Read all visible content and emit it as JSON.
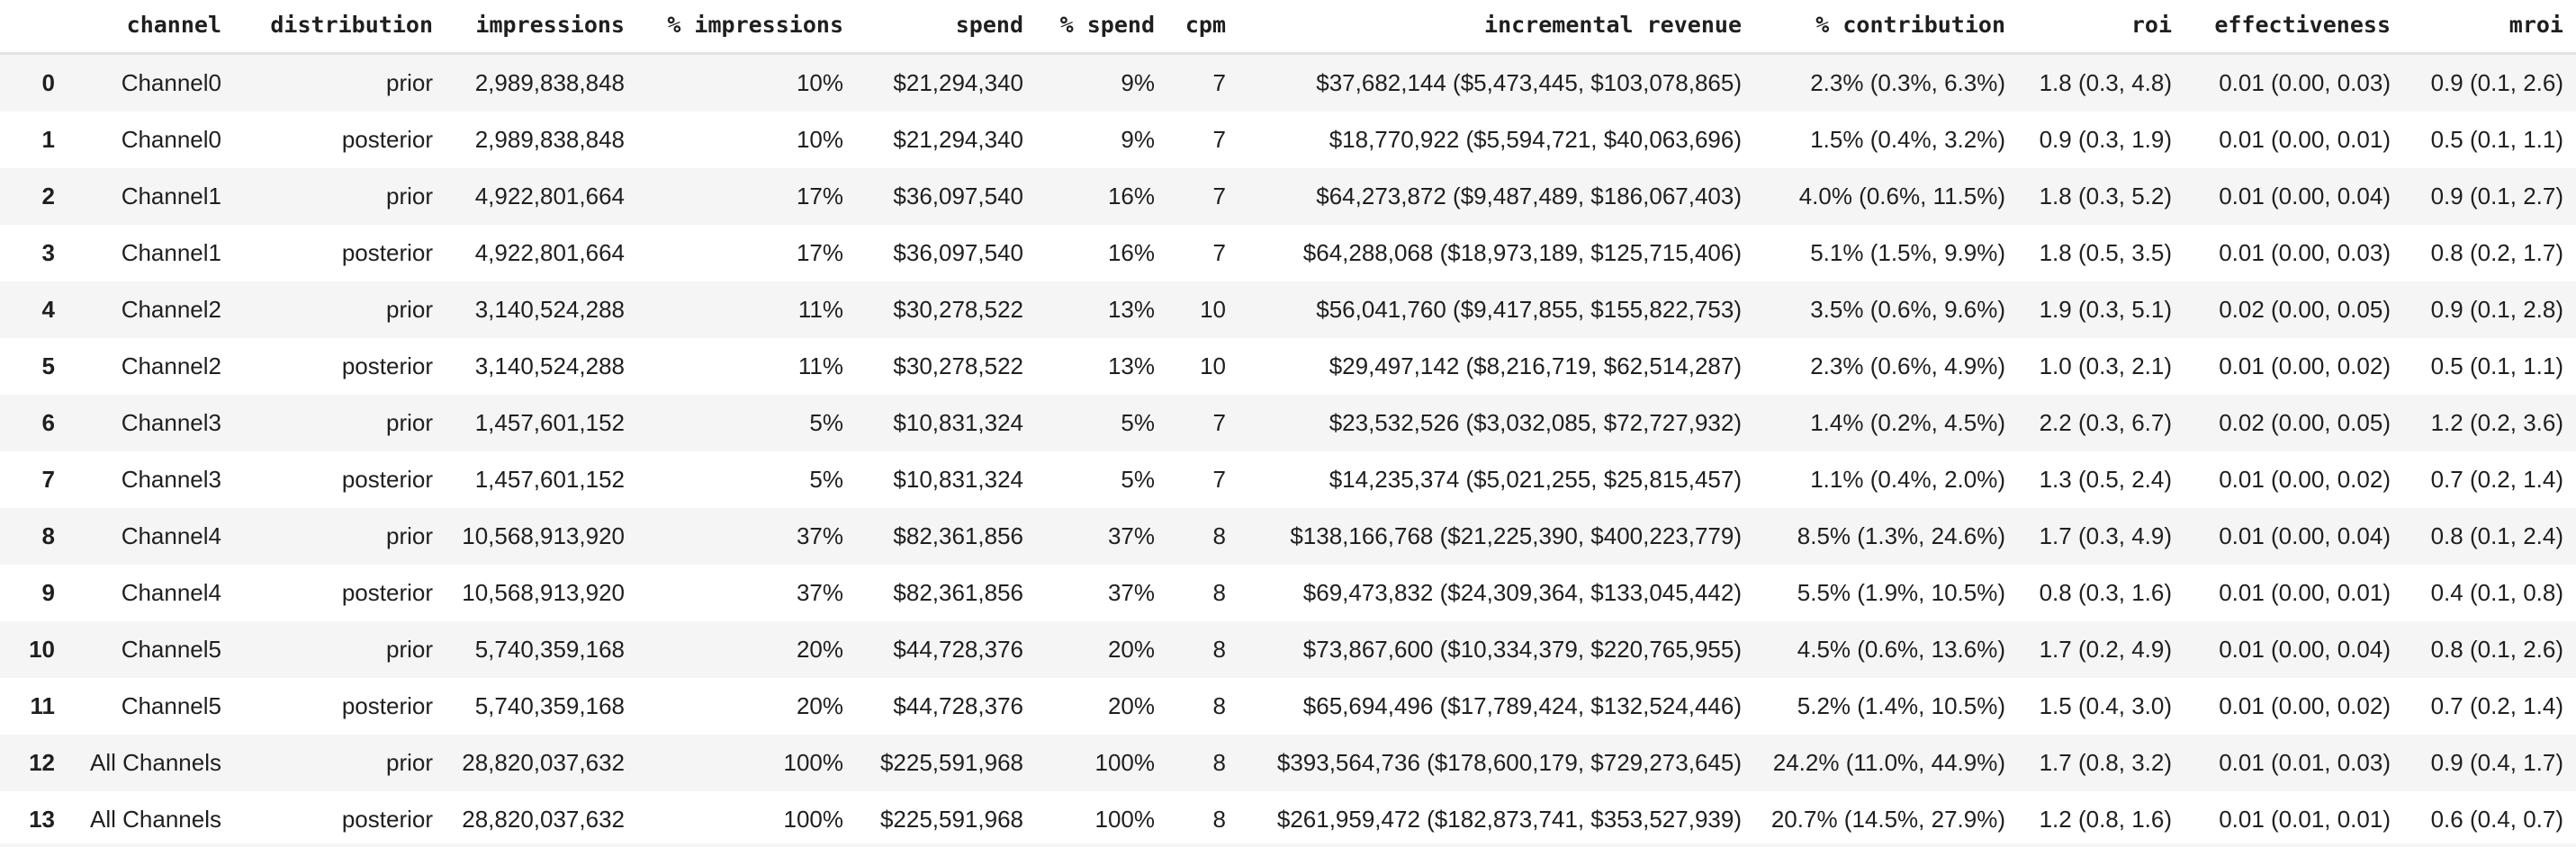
{
  "table": {
    "index_header": "",
    "columns": [
      "channel",
      "distribution",
      "impressions",
      "% impressions",
      "spend",
      "% spend",
      "cpm",
      "incremental revenue",
      "% contribution",
      "roi",
      "effectiveness",
      "mroi"
    ],
    "rows": [
      {
        "index": "0",
        "cells": [
          "Channel0",
          "prior",
          "2,989,838,848",
          "10%",
          "$21,294,340",
          "9%",
          "7",
          "$37,682,144 ($5,473,445, $103,078,865)",
          "2.3% (0.3%, 6.3%)",
          "1.8 (0.3, 4.8)",
          "0.01 (0.00, 0.03)",
          "0.9 (0.1, 2.6)"
        ]
      },
      {
        "index": "1",
        "cells": [
          "Channel0",
          "posterior",
          "2,989,838,848",
          "10%",
          "$21,294,340",
          "9%",
          "7",
          "$18,770,922 ($5,594,721, $40,063,696)",
          "1.5% (0.4%, 3.2%)",
          "0.9 (0.3, 1.9)",
          "0.01 (0.00, 0.01)",
          "0.5 (0.1, 1.1)"
        ]
      },
      {
        "index": "2",
        "cells": [
          "Channel1",
          "prior",
          "4,922,801,664",
          "17%",
          "$36,097,540",
          "16%",
          "7",
          "$64,273,872 ($9,487,489, $186,067,403)",
          "4.0% (0.6%, 11.5%)",
          "1.8 (0.3, 5.2)",
          "0.01 (0.00, 0.04)",
          "0.9 (0.1, 2.7)"
        ]
      },
      {
        "index": "3",
        "cells": [
          "Channel1",
          "posterior",
          "4,922,801,664",
          "17%",
          "$36,097,540",
          "16%",
          "7",
          "$64,288,068 ($18,973,189, $125,715,406)",
          "5.1% (1.5%, 9.9%)",
          "1.8 (0.5, 3.5)",
          "0.01 (0.00, 0.03)",
          "0.8 (0.2, 1.7)"
        ]
      },
      {
        "index": "4",
        "cells": [
          "Channel2",
          "prior",
          "3,140,524,288",
          "11%",
          "$30,278,522",
          "13%",
          "10",
          "$56,041,760 ($9,417,855, $155,822,753)",
          "3.5% (0.6%, 9.6%)",
          "1.9 (0.3, 5.1)",
          "0.02 (0.00, 0.05)",
          "0.9 (0.1, 2.8)"
        ]
      },
      {
        "index": "5",
        "cells": [
          "Channel2",
          "posterior",
          "3,140,524,288",
          "11%",
          "$30,278,522",
          "13%",
          "10",
          "$29,497,142 ($8,216,719, $62,514,287)",
          "2.3% (0.6%, 4.9%)",
          "1.0 (0.3, 2.1)",
          "0.01 (0.00, 0.02)",
          "0.5 (0.1, 1.1)"
        ]
      },
      {
        "index": "6",
        "cells": [
          "Channel3",
          "prior",
          "1,457,601,152",
          "5%",
          "$10,831,324",
          "5%",
          "7",
          "$23,532,526 ($3,032,085, $72,727,932)",
          "1.4% (0.2%, 4.5%)",
          "2.2 (0.3, 6.7)",
          "0.02 (0.00, 0.05)",
          "1.2 (0.2, 3.6)"
        ]
      },
      {
        "index": "7",
        "cells": [
          "Channel3",
          "posterior",
          "1,457,601,152",
          "5%",
          "$10,831,324",
          "5%",
          "7",
          "$14,235,374 ($5,021,255, $25,815,457)",
          "1.1% (0.4%, 2.0%)",
          "1.3 (0.5, 2.4)",
          "0.01 (0.00, 0.02)",
          "0.7 (0.2, 1.4)"
        ]
      },
      {
        "index": "8",
        "cells": [
          "Channel4",
          "prior",
          "10,568,913,920",
          "37%",
          "$82,361,856",
          "37%",
          "8",
          "$138,166,768 ($21,225,390, $400,223,779)",
          "8.5% (1.3%, 24.6%)",
          "1.7 (0.3, 4.9)",
          "0.01 (0.00, 0.04)",
          "0.8 (0.1, 2.4)"
        ]
      },
      {
        "index": "9",
        "cells": [
          "Channel4",
          "posterior",
          "10,568,913,920",
          "37%",
          "$82,361,856",
          "37%",
          "8",
          "$69,473,832 ($24,309,364, $133,045,442)",
          "5.5% (1.9%, 10.5%)",
          "0.8 (0.3, 1.6)",
          "0.01 (0.00, 0.01)",
          "0.4 (0.1, 0.8)"
        ]
      },
      {
        "index": "10",
        "cells": [
          "Channel5",
          "prior",
          "5,740,359,168",
          "20%",
          "$44,728,376",
          "20%",
          "8",
          "$73,867,600 ($10,334,379, $220,765,955)",
          "4.5% (0.6%, 13.6%)",
          "1.7 (0.2, 4.9)",
          "0.01 (0.00, 0.04)",
          "0.8 (0.1, 2.6)"
        ]
      },
      {
        "index": "11",
        "cells": [
          "Channel5",
          "posterior",
          "5,740,359,168",
          "20%",
          "$44,728,376",
          "20%",
          "8",
          "$65,694,496 ($17,789,424, $132,524,446)",
          "5.2% (1.4%, 10.5%)",
          "1.5 (0.4, 3.0)",
          "0.01 (0.00, 0.02)",
          "0.7 (0.2, 1.4)"
        ]
      },
      {
        "index": "12",
        "cells": [
          "All Channels",
          "prior",
          "28,820,037,632",
          "100%",
          "$225,591,968",
          "100%",
          "8",
          "$393,564,736 ($178,600,179, $729,273,645)",
          "24.2% (11.0%, 44.9%)",
          "1.7 (0.8, 3.2)",
          "0.01 (0.01, 0.03)",
          "0.9 (0.4, 1.7)"
        ]
      },
      {
        "index": "13",
        "cells": [
          "All Channels",
          "posterior",
          "28,820,037,632",
          "100%",
          "$225,591,968",
          "100%",
          "8",
          "$261,959,472 ($182,873,741, $353,527,939)",
          "20.7% (14.5%, 27.9%)",
          "1.2 (0.8, 1.6)",
          "0.01 (0.01, 0.01)",
          "0.6 (0.4, 0.7)"
        ]
      }
    ]
  },
  "colors": {
    "background": "#ffffff",
    "stripe": "#f5f5f5",
    "text": "#1f1f1f",
    "header_divider": "#e2e2e2"
  }
}
